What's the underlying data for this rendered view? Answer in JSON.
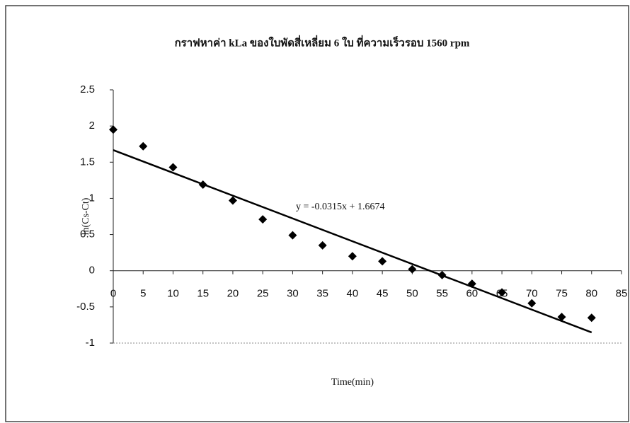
{
  "chart_data": {
    "type": "scatter",
    "title": "กราฟหาค่า kLa ของใบพัดสี่เหลี่ยม 6 ใบ ที่ความเร็วรอบ 1560 rpm",
    "x_label": "Time(min)",
    "y_label": "ln(Cs-Ct)",
    "x": [
      0,
      5,
      10,
      15,
      20,
      25,
      30,
      35,
      40,
      45,
      50,
      55,
      60,
      65,
      70,
      75,
      80
    ],
    "values": [
      1.95,
      1.72,
      1.43,
      1.19,
      0.97,
      0.71,
      0.49,
      0.35,
      0.2,
      0.13,
      0.02,
      -0.06,
      -0.18,
      -0.3,
      -0.45,
      -0.64,
      -0.65
    ],
    "color": "#000000",
    "trendline": {
      "slope": -0.0315,
      "intercept": 1.6674,
      "label": "y = -0.0315x + 1.6674",
      "color": "#000000"
    },
    "xlim": [
      0,
      85
    ],
    "xticks": [
      0,
      5,
      10,
      15,
      20,
      25,
      30,
      35,
      40,
      45,
      50,
      55,
      60,
      65,
      70,
      75,
      80,
      85
    ],
    "ylim": [
      -1,
      2.5
    ],
    "yticks": [
      -1,
      -0.5,
      0,
      0.5,
      1,
      1.5,
      2,
      2.5
    ]
  }
}
